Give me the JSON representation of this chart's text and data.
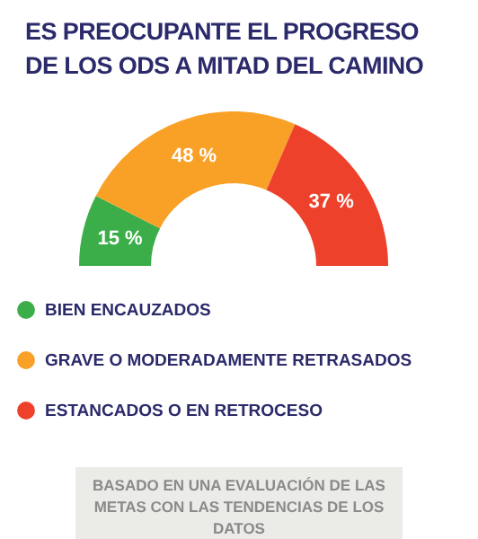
{
  "chart_data": {
    "type": "donut",
    "title": "ES PREOCUPANTE EL PROGRESO DE LOS ODS A MITAD DEL CAMINO",
    "categories": [
      "BIEN ENCAUZADOS",
      "GRAVE O MODERADAMENTE RETRASADOS",
      "ESTANCADOS O EN RETROCESO"
    ],
    "values": [
      15,
      48,
      37
    ],
    "colors": [
      "#3cae49",
      "#f9a027",
      "#ee412b"
    ],
    "value_labels": [
      "15 %",
      "48 %",
      "37 %"
    ],
    "legend": "bottom",
    "annotations": [
      "BASADO EN UNA EVALUACIÓN DE LAS METAS CON LAS TENDENCIAS DE LOS DATOS"
    ]
  }
}
